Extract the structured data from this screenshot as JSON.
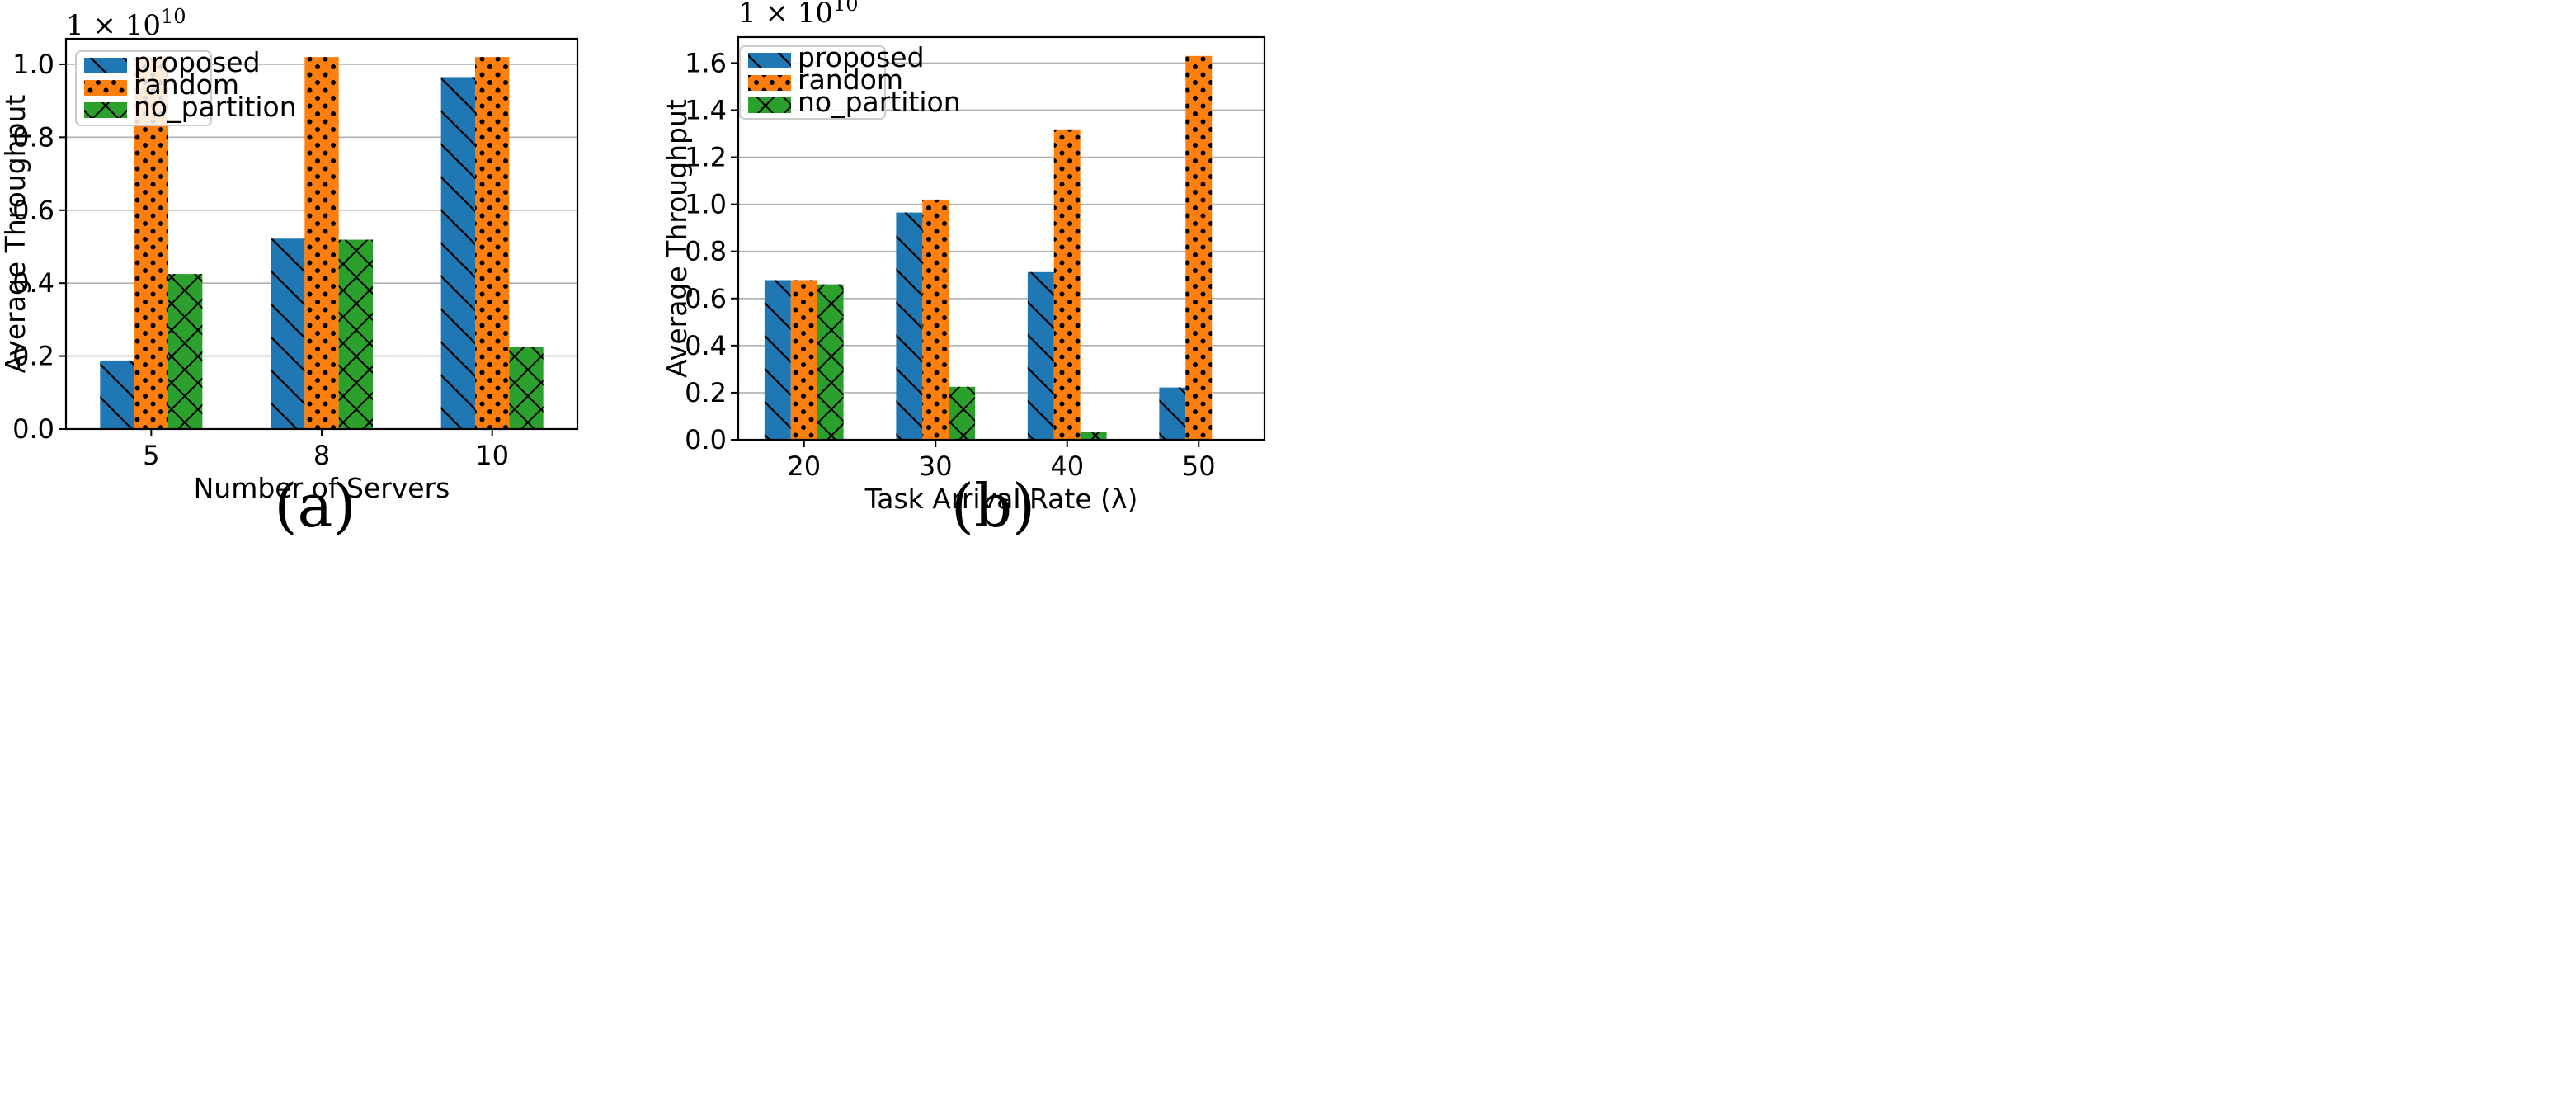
{
  "colors": {
    "proposed": "#1f77b4",
    "random": "#ff7f0e",
    "no_partition": "#2ca02c",
    "grid": "#b0b0b0"
  },
  "chart_data": [
    {
      "type": "bar",
      "caption": "(a)",
      "categories": [
        "5",
        "8",
        "10"
      ],
      "series": [
        {
          "name": "proposed",
          "values": [
            0.188,
            0.522,
            0.965
          ]
        },
        {
          "name": "random",
          "values": [
            1.02,
            1.02,
            1.02
          ]
        },
        {
          "name": "no_partition",
          "values": [
            0.425,
            0.519,
            0.225
          ]
        }
      ],
      "xlabel": "Number of Servers",
      "ylabel": "Average Throughput",
      "offset_text": "1 × 10",
      "offset_exp": "10",
      "ylim": [
        0,
        1.07
      ],
      "yticks": [
        "0.0",
        "0.2",
        "0.4",
        "0.6",
        "0.8",
        "1.0"
      ],
      "legend": [
        "proposed",
        "random",
        "no_partition"
      ],
      "legend_position": "top-left",
      "grid": "y"
    },
    {
      "type": "bar",
      "caption": "(b)",
      "categories": [
        "20",
        "30",
        "40",
        "50"
      ],
      "series": [
        {
          "name": "proposed",
          "values": [
            0.678,
            0.965,
            0.712,
            0.222
          ]
        },
        {
          "name": "random",
          "values": [
            0.678,
            1.02,
            1.318,
            1.63
          ]
        },
        {
          "name": "no_partition",
          "values": [
            0.66,
            0.225,
            0.035,
            0.0
          ]
        }
      ],
      "xlabel": "Task Arrival Rate (λ)",
      "ylabel": "Average Throughput",
      "offset_text": "1 × 10",
      "offset_exp": "10",
      "ylim": [
        0,
        1.71
      ],
      "yticks": [
        "0.0",
        "0.2",
        "0.4",
        "0.6",
        "0.8",
        "1.0",
        "1.2",
        "1.4",
        "1.6"
      ],
      "legend": [
        "proposed",
        "random",
        "no_partition"
      ],
      "legend_position": "top-left",
      "grid": "y"
    }
  ]
}
